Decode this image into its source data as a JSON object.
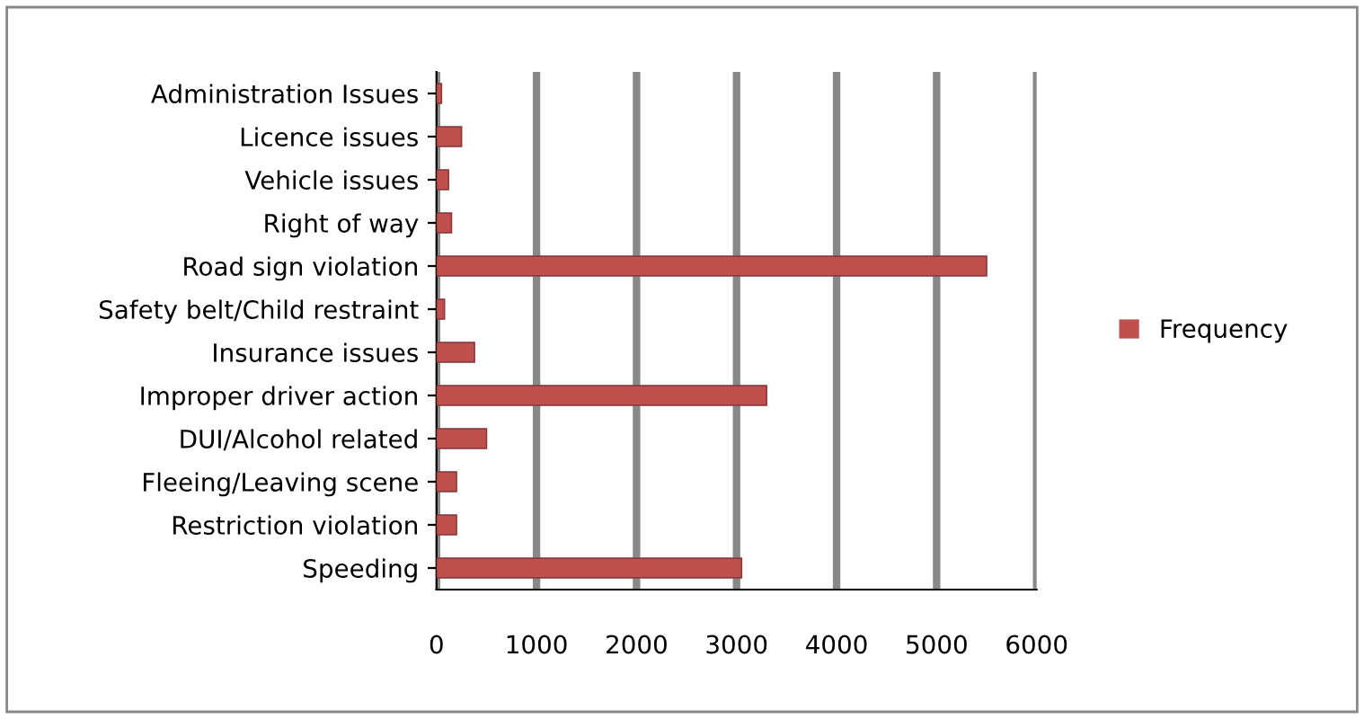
{
  "chart_data": {
    "type": "bar",
    "orientation": "horizontal",
    "categories": [
      "Administration Issues",
      "Licence issues",
      "Vehicle issues",
      "Right of way",
      "Road sign violation",
      "Safety belt/Child restraint",
      "Insurance issues",
      "Improper driver action",
      "DUI/Alcohol related",
      "Fleeing/Leaving scene",
      "Restriction violation",
      "Speeding"
    ],
    "series": [
      {
        "name": "Frequency",
        "color": "#c0504d",
        "values": [
          50,
          250,
          120,
          150,
          5500,
          80,
          380,
          3300,
          500,
          200,
          200,
          3050
        ]
      }
    ],
    "xlim": [
      0,
      6000
    ],
    "xticks": [
      0,
      1000,
      2000,
      3000,
      4000,
      5000,
      6000
    ],
    "grid": "x",
    "legend": "right"
  }
}
